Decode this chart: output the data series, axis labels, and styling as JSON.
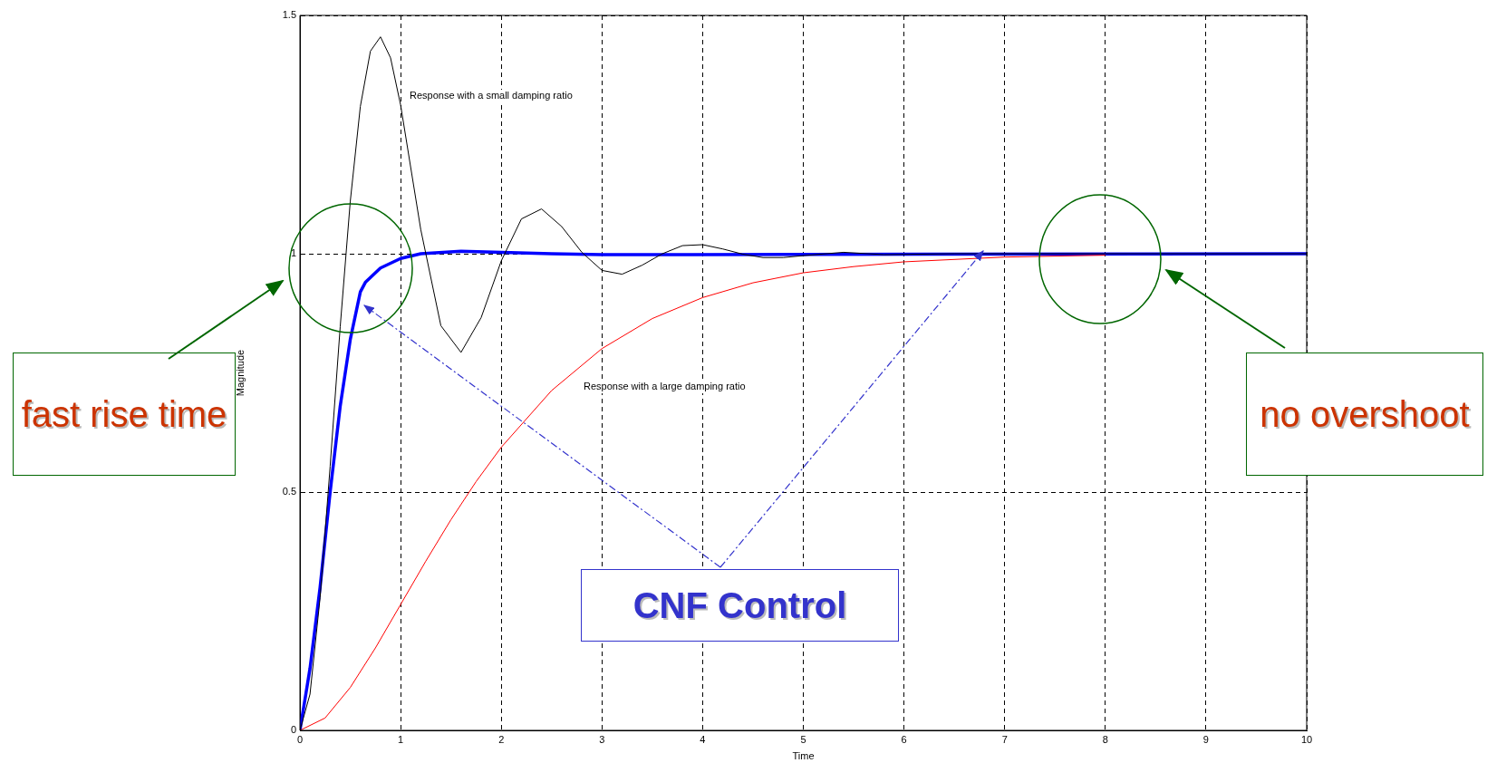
{
  "chart_data": {
    "type": "line",
    "xlabel": "Time",
    "ylabel": "Magnitude",
    "xlim": [
      0,
      10
    ],
    "ylim": [
      0,
      1.5
    ],
    "xticks": [
      0,
      1,
      2,
      3,
      4,
      5,
      6,
      7,
      8,
      9,
      10
    ],
    "yticks": [
      0,
      0.5,
      1,
      1.5
    ],
    "grid": true,
    "legend": false,
    "marker": "none",
    "line_style": "solid",
    "series": [
      {
        "color": "#000000",
        "x": [
          0,
          0.1,
          0.2,
          0.3,
          0.4,
          0.5,
          0.6,
          0.7,
          0.8,
          0.9,
          1.0,
          1.2,
          1.4,
          1.6,
          1.8,
          2.0,
          2.2,
          2.4,
          2.6,
          2.8,
          3.0,
          3.2,
          3.4,
          3.6,
          3.8,
          4.0,
          4.2,
          4.4,
          4.6,
          4.8,
          5.0,
          5.4,
          5.8,
          6.5,
          10
        ],
        "values": [
          0,
          0.076,
          0.278,
          0.554,
          0.847,
          1.11,
          1.309,
          1.425,
          1.455,
          1.411,
          1.312,
          1.051,
          0.849,
          0.793,
          0.866,
          0.985,
          1.073,
          1.094,
          1.057,
          1.003,
          0.965,
          0.957,
          0.976,
          1.0,
          1.017,
          1.019,
          1.01,
          0.999,
          0.992,
          0.992,
          0.996,
          1.003,
          0.998,
          1.0,
          1.0
        ]
      },
      {
        "color": "#ff0000",
        "x": [
          0,
          0.25,
          0.5,
          0.75,
          1,
          1.25,
          1.5,
          1.75,
          2,
          2.5,
          3,
          3.5,
          4,
          4.5,
          5,
          5.5,
          6,
          7,
          8
        ],
        "values": [
          0,
          0.026,
          0.09,
          0.173,
          0.264,
          0.355,
          0.442,
          0.522,
          0.594,
          0.713,
          0.801,
          0.864,
          0.908,
          0.939,
          0.96,
          0.973,
          0.983,
          0.993,
          0.997
        ]
      },
      {
        "color": "#0000ff",
        "x": [
          0,
          0.1,
          0.2,
          0.3,
          0.4,
          0.5,
          0.6,
          0.65,
          0.8,
          1.0,
          1.2,
          1.6,
          2.5,
          3,
          10
        ],
        "values": [
          0,
          0.13,
          0.3,
          0.5,
          0.68,
          0.82,
          0.92,
          0.94,
          0.97,
          0.99,
          1.0,
          1.005,
          1.0,
          0.998,
          1.0
        ]
      }
    ],
    "annotations": [
      "Response with a small damping ratio",
      "Response with a large damping ratio",
      "fast rise time",
      "no overshoot",
      "CNF Control"
    ]
  }
}
